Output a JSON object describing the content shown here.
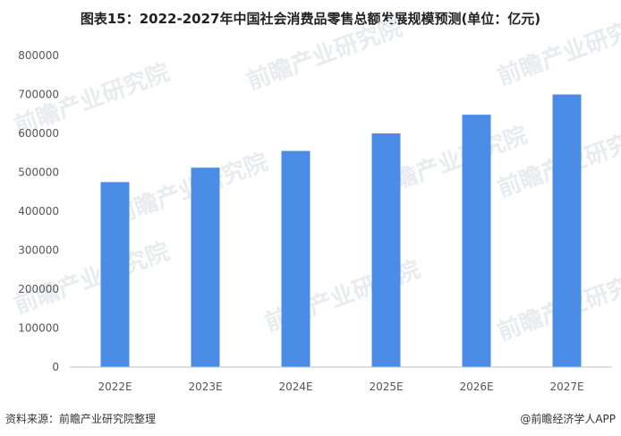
{
  "chart_data": {
    "type": "bar",
    "title": "图表15：2022-2027年中国社会消费品零售总额发展规模预测(单位：亿元)",
    "categories": [
      "2022E",
      "2023E",
      "2024E",
      "2025E",
      "2026E",
      "2027E"
    ],
    "values": [
      475000,
      512000,
      555000,
      600000,
      648000,
      700000
    ],
    "ylim": [
      0,
      800000
    ],
    "yticks": [
      0,
      100000,
      200000,
      300000,
      400000,
      500000,
      600000,
      700000,
      800000
    ],
    "bar_color": "#4b8ce6",
    "grid": false,
    "legend": "none"
  },
  "footer": {
    "source": "资料来源：前瞻产业研究院整理",
    "brand": "@前瞻经济学人APP"
  },
  "watermark": {
    "text": "前瞻产业研究院"
  }
}
